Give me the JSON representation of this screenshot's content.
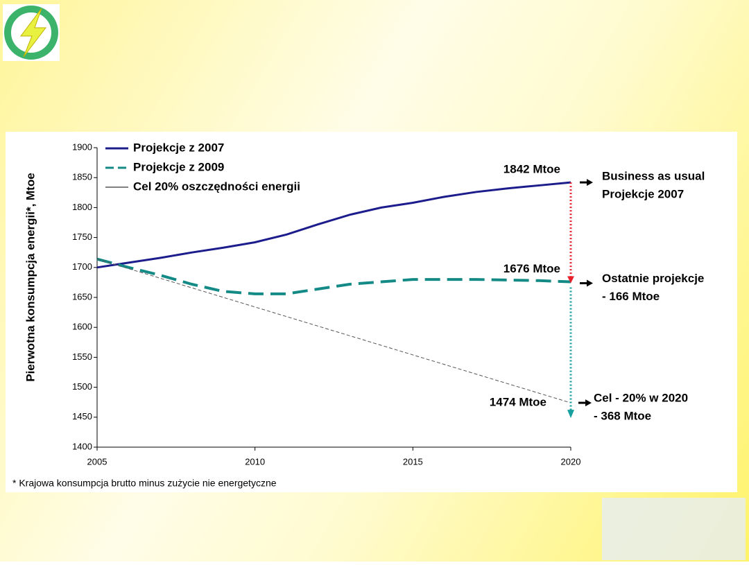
{
  "chart_data": {
    "type": "line",
    "y_label": "Pierwotna konsumpcja energii*, Mtoe",
    "footnote": "*  Krajowa konsumpcja brutto minus zużycie nie energetyczne",
    "x": [
      2005,
      2006,
      2007,
      2008,
      2009,
      2010,
      2011,
      2012,
      2013,
      2014,
      2015,
      2016,
      2017,
      2018,
      2019,
      2020
    ],
    "series": [
      {
        "name": "Projekcje z 2007",
        "color": "#1c1c8c",
        "style": "solid",
        "values": [
          1700,
          1708,
          1716,
          1725,
          1733,
          1742,
          1755,
          1772,
          1788,
          1800,
          1808,
          1818,
          1826,
          1832,
          1837,
          1842
        ]
      },
      {
        "name": "Projekcje z  2009",
        "color": "#138a86",
        "style": "dashed",
        "values": [
          1714,
          1700,
          1687,
          1672,
          1660,
          1656,
          1656,
          1664,
          1672,
          1676,
          1680,
          1680,
          1680,
          1679,
          1678,
          1676
        ]
      },
      {
        "name": "Cel 20% oszczędności energii",
        "color": "#555555",
        "style": "thin",
        "values": [
          1714,
          1698,
          1682,
          1666,
          1650,
          1634,
          1618,
          1602,
          1586,
          1570,
          1554,
          1538,
          1522,
          1506,
          1490,
          1474
        ]
      }
    ],
    "value_annotations": [
      "1842 Mtoe",
      "1676 Mtoe",
      "1474 Mtoe"
    ],
    "side_notes": [
      [
        "Business as usual",
        "Projekcje 2007"
      ],
      [
        "Ostatnie projekcje",
        "- 166 Mtoe"
      ],
      [
        "Cel - 20% w 2020",
        "- 368 Mtoe"
      ]
    ],
    "xlim": [
      2005,
      2020
    ],
    "ylim": [
      1400,
      1900
    ],
    "xticks": [
      2005,
      2010,
      2015,
      2020
    ],
    "yticks": [
      1400,
      1450,
      1500,
      1550,
      1600,
      1650,
      1700,
      1750,
      1800,
      1850,
      1900
    ],
    "grid": false
  }
}
